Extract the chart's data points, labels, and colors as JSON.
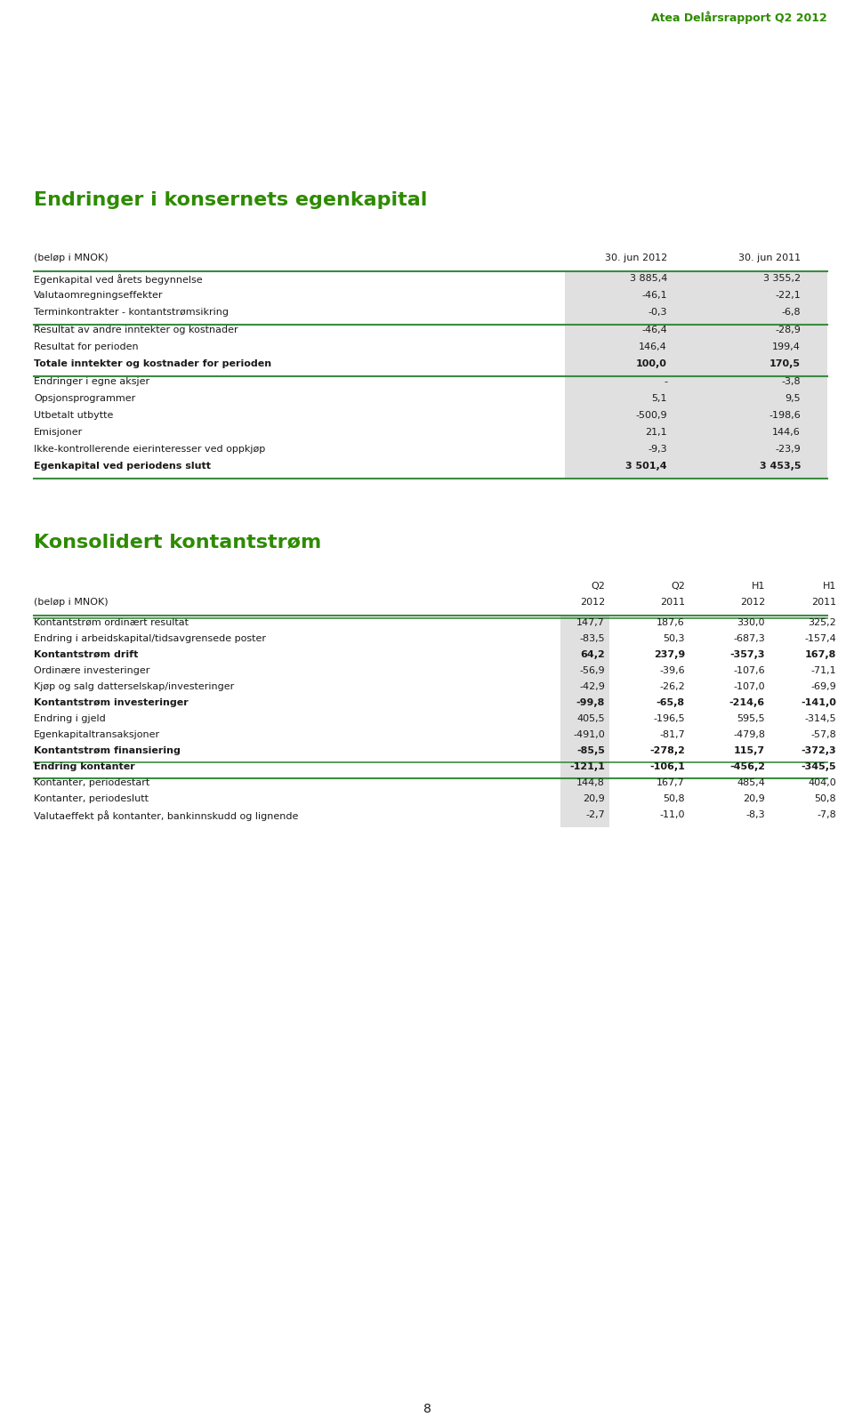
{
  "page_header": "Atea Delårsrapport Q2 2012",
  "header_color": "#2e8b00",
  "bg_color": "#ffffff",
  "section1_title": "Endringer i konsernets egenkapital",
  "section1_title_color": "#2e8b00",
  "section1_subtitle": "(beløp i MNOK)",
  "section1_col1": "30. jun 2012",
  "section1_col2": "30. jun 2011",
  "section1_rows": [
    {
      "label": "Egenkapital ved årets begynnelse",
      "v1": "3 885,4",
      "v2": "3 355,2",
      "bold": false,
      "line_below": false
    },
    {
      "label": "Valutaomregningseffekter",
      "v1": "-46,1",
      "v2": "-22,1",
      "bold": false,
      "line_below": false
    },
    {
      "label": "Terminkontrakter - kontantstrømsikring",
      "v1": "-0,3",
      "v2": "-6,8",
      "bold": false,
      "line_below": true
    },
    {
      "label": "Resultat av andre inntekter og kostnader",
      "v1": "-46,4",
      "v2": "-28,9",
      "bold": false,
      "line_below": false
    },
    {
      "label": "Resultat for perioden",
      "v1": "146,4",
      "v2": "199,4",
      "bold": false,
      "line_below": false
    },
    {
      "label": "Totale inntekter og kostnader for perioden",
      "v1": "100,0",
      "v2": "170,5",
      "bold": true,
      "line_below": true
    },
    {
      "label": "Endringer i egne aksjer",
      "v1": "-",
      "v2": "-3,8",
      "bold": false,
      "line_below": false
    },
    {
      "label": "Opsjonsprogrammer",
      "v1": "5,1",
      "v2": "9,5",
      "bold": false,
      "line_below": false
    },
    {
      "label": "Utbetalt utbytte",
      "v1": "-500,9",
      "v2": "-198,6",
      "bold": false,
      "line_below": false
    },
    {
      "label": "Emisjoner",
      "v1": "21,1",
      "v2": "144,6",
      "bold": false,
      "line_below": false
    },
    {
      "label": "Ikke-kontrollerende eierinteresser ved oppkjøp",
      "v1": "-9,3",
      "v2": "-23,9",
      "bold": false,
      "line_below": false
    },
    {
      "label": "Egenkapital ved periodens slutt",
      "v1": "3 501,4",
      "v2": "3 453,5",
      "bold": true,
      "line_below": true
    }
  ],
  "section2_title": "Konsolidert kontantstrøm",
  "section2_title_color": "#2e8b00",
  "section2_subtitle": "(beløp i MNOK)",
  "section2_col_headers1": [
    "Q2",
    "Q2",
    "H1",
    "H1"
  ],
  "section2_col_headers2": [
    "2012",
    "2011",
    "2012",
    "2011"
  ],
  "section2_rows": [
    {
      "label": "Kontantstrøm ordinært resultat",
      "vals": [
        "147,7",
        "187,6",
        "330,0",
        "325,2"
      ],
      "bold": false,
      "line_above": true,
      "line_below": false
    },
    {
      "label": "Endring i arbeidskapital/tidsavgrensede poster",
      "vals": [
        "-83,5",
        "50,3",
        "-687,3",
        "-157,4"
      ],
      "bold": false,
      "line_above": false,
      "line_below": false
    },
    {
      "label": "Kontantstrøm drift",
      "vals": [
        "64,2",
        "237,9",
        "-357,3",
        "167,8"
      ],
      "bold": true,
      "line_above": false,
      "line_below": false
    },
    {
      "label": "Ordinære investeringer",
      "vals": [
        "-56,9",
        "-39,6",
        "-107,6",
        "-71,1"
      ],
      "bold": false,
      "line_above": false,
      "line_below": false
    },
    {
      "label": "Kjøp og salg datterselskap/investeringer",
      "vals": [
        "-42,9",
        "-26,2",
        "-107,0",
        "-69,9"
      ],
      "bold": false,
      "line_above": false,
      "line_below": false
    },
    {
      "label": "Kontantstrøm investeringer",
      "vals": [
        "-99,8",
        "-65,8",
        "-214,6",
        "-141,0"
      ],
      "bold": true,
      "line_above": false,
      "line_below": false
    },
    {
      "label": "Endring i gjeld",
      "vals": [
        "405,5",
        "-196,5",
        "595,5",
        "-314,5"
      ],
      "bold": false,
      "line_above": false,
      "line_below": false
    },
    {
      "label": "Egenkapitaltransaksjoner",
      "vals": [
        "-491,0",
        "-81,7",
        "-479,8",
        "-57,8"
      ],
      "bold": false,
      "line_above": false,
      "line_below": false
    },
    {
      "label": "Kontantstrøm finansiering",
      "vals": [
        "-85,5",
        "-278,2",
        "115,7",
        "-372,3"
      ],
      "bold": true,
      "line_above": false,
      "line_below": false
    },
    {
      "label": "Endring kontanter",
      "vals": [
        "-121,1",
        "-106,1",
        "-456,2",
        "-345,5"
      ],
      "bold": true,
      "line_above": true,
      "line_below": true
    },
    {
      "label": "Kontanter, periodestart",
      "vals": [
        "144,8",
        "167,7",
        "485,4",
        "404,0"
      ],
      "bold": false,
      "line_above": false,
      "line_below": false
    },
    {
      "label": "Kontanter, periodeslutt",
      "vals": [
        "20,9",
        "50,8",
        "20,9",
        "50,8"
      ],
      "bold": false,
      "line_above": false,
      "line_below": false
    },
    {
      "label": "Valutaeffekt på kontanter, bankinnskudd og lignende",
      "vals": [
        "-2,7",
        "-11,0",
        "-8,3",
        "-7,8"
      ],
      "bold": false,
      "line_above": false,
      "line_below": false
    }
  ],
  "footer_text": "8",
  "text_color": "#1a1a1a",
  "shaded_col_color": "#e0e0e0",
  "line_color": "#3a8c3f",
  "font_size": 8.0
}
